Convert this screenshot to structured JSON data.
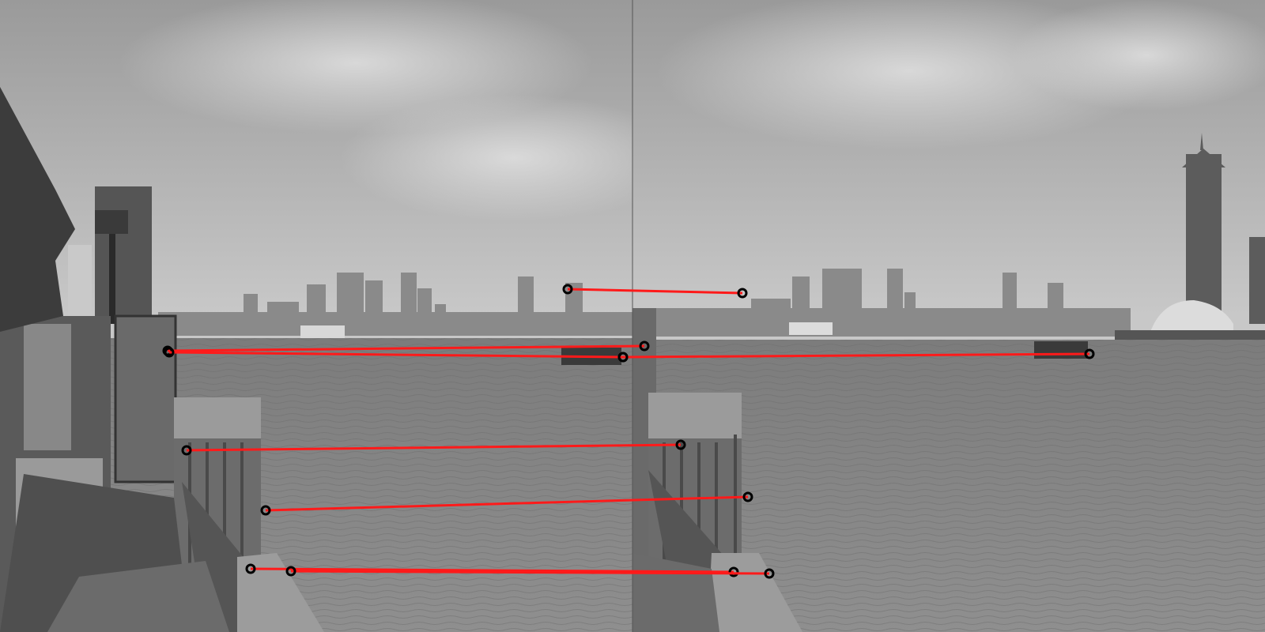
{
  "colors": {
    "match_line": "#ff1a1a",
    "keypoint_ring": "#000000"
  },
  "panels": [
    {
      "name": "left-photo"
    },
    {
      "name": "right-photo"
    }
  ],
  "matches_count_visible": 8,
  "matches": [
    {
      "a": [
        718,
        366
      ],
      "b": [
        939,
        371
      ]
    },
    {
      "a": [
        212,
        444
      ],
      "b": [
        815,
        438
      ]
    },
    {
      "a": [
        214,
        446
      ],
      "b": [
        788,
        452
      ]
    },
    {
      "a": [
        236,
        570
      ],
      "b": [
        861,
        563
      ]
    },
    {
      "a": [
        336,
        646
      ],
      "b": [
        946,
        629
      ]
    },
    {
      "a": [
        317,
        720
      ],
      "b": [
        928,
        724
      ]
    },
    {
      "a": [
        368,
        723
      ],
      "b": [
        973,
        726
      ]
    },
    {
      "a": [
        788,
        452
      ],
      "b": [
        1378,
        448
      ]
    }
  ]
}
